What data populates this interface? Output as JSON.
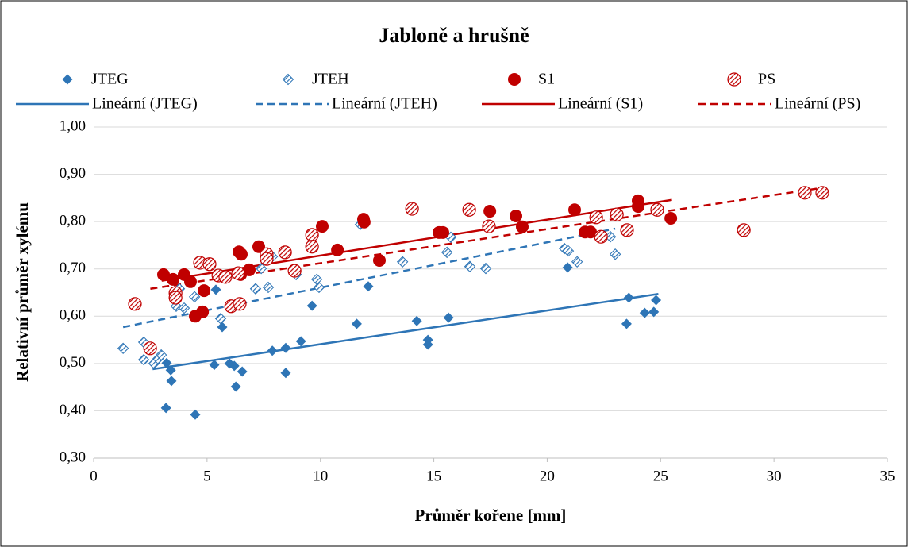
{
  "chart_data": {
    "type": "scatter",
    "title": "Jabloně a hrušně",
    "xlabel": "Průměr kořene [mm]",
    "ylabel": "Relativní průměr xylému",
    "xlim": [
      0,
      35
    ],
    "xticks": [
      0,
      5,
      10,
      15,
      20,
      25,
      30,
      35
    ],
    "ylim": [
      0.3,
      1.0
    ],
    "yticks": [
      {
        "value": 0.3,
        "label": "0,30"
      },
      {
        "value": 0.4,
        "label": "0,40"
      },
      {
        "value": 0.5,
        "label": "0,50"
      },
      {
        "value": 0.6,
        "label": "0,60"
      },
      {
        "value": 0.7,
        "label": "0,70"
      },
      {
        "value": 0.8,
        "label": "0,80"
      },
      {
        "value": 0.9,
        "label": "0,90"
      },
      {
        "value": 1.0,
        "label": "1,00"
      }
    ],
    "grid": true,
    "series": [
      {
        "name": "JTEG",
        "color": "#2e75b6",
        "marker": "diamond",
        "fill": "solid",
        "x": [
          3.19,
          4.48,
          3.22,
          3.4,
          3.43,
          5.32,
          5.39,
          5.67,
          5.99,
          6.2,
          6.27,
          6.55,
          7.88,
          8.47,
          8.47,
          9.14,
          9.63,
          11.6,
          12.11,
          14.25,
          14.74,
          14.74,
          15.65,
          20.9,
          23.6,
          23.5,
          24.3,
          24.7,
          24.8
        ],
        "values": [
          0.406,
          0.392,
          0.501,
          0.486,
          0.463,
          0.497,
          0.656,
          0.577,
          0.5,
          0.495,
          0.451,
          0.483,
          0.527,
          0.48,
          0.533,
          0.547,
          0.622,
          0.584,
          0.663,
          0.59,
          0.55,
          0.54,
          0.597,
          0.703,
          0.639,
          0.584,
          0.607,
          0.609,
          0.634
        ]
      },
      {
        "name": "JTEH",
        "color": "#2e75b6",
        "marker": "diamond",
        "fill": "hatched",
        "x": [
          1.3,
          2.21,
          2.21,
          2.66,
          2.84,
          2.98,
          3.64,
          3.78,
          3.99,
          4.45,
          5.6,
          7.14,
          7.39,
          7.7,
          7.88,
          8.93,
          9.84,
          9.94,
          11.76,
          13.62,
          15.58,
          15.75,
          16.59,
          17.29,
          20.76,
          20.93,
          21.32,
          22.79,
          23.0
        ],
        "values": [
          0.532,
          0.545,
          0.508,
          0.5,
          0.51,
          0.518,
          0.621,
          0.658,
          0.617,
          0.641,
          0.595,
          0.658,
          0.701,
          0.661,
          0.726,
          0.688,
          0.678,
          0.661,
          0.794,
          0.715,
          0.735,
          0.767,
          0.705,
          0.701,
          0.743,
          0.738,
          0.715,
          0.768,
          0.731
        ]
      },
      {
        "name": "S1",
        "color": "#c00000",
        "marker": "circle",
        "fill": "solid",
        "x": [
          3.08,
          3.5,
          3.99,
          4.27,
          4.48,
          4.8,
          4.87,
          6.41,
          6.51,
          6.48,
          6.86,
          7.28,
          10.08,
          10.75,
          11.9,
          11.93,
          12.6,
          15.23,
          15.4,
          17.47,
          18.62,
          18.9,
          21.21,
          21.67,
          21.91,
          24.01,
          24.01,
          25.45
        ],
        "values": [
          0.688,
          0.678,
          0.688,
          0.673,
          0.6,
          0.609,
          0.654,
          0.736,
          0.731,
          0.688,
          0.698,
          0.747,
          0.79,
          0.74,
          0.805,
          0.799,
          0.718,
          0.777,
          0.777,
          0.822,
          0.812,
          0.789,
          0.825,
          0.778,
          0.778,
          0.844,
          0.832,
          0.807
        ]
      },
      {
        "name": "PS",
        "color": "#c00000",
        "marker": "circle",
        "fill": "hatched",
        "x": [
          1.82,
          2.49,
          3.61,
          3.61,
          4.69,
          5.11,
          5.5,
          5.81,
          6.06,
          6.44,
          6.37,
          7.63,
          7.63,
          8.44,
          8.86,
          9.63,
          9.63,
          14.04,
          16.56,
          17.43,
          22.16,
          22.37,
          23.07,
          23.52,
          24.85,
          28.67,
          31.36,
          32.13
        ],
        "values": [
          0.626,
          0.532,
          0.649,
          0.639,
          0.713,
          0.71,
          0.686,
          0.683,
          0.621,
          0.626,
          0.691,
          0.731,
          0.721,
          0.735,
          0.696,
          0.772,
          0.747,
          0.827,
          0.825,
          0.79,
          0.809,
          0.768,
          0.815,
          0.782,
          0.825,
          0.782,
          0.861,
          0.861
        ]
      }
    ],
    "trendlines": [
      {
        "name": "Lineární (JTEG)",
        "color": "#2e75b6",
        "dashed": false,
        "x": [
          2.6,
          24.9
        ],
        "values": [
          0.488,
          0.647
        ]
      },
      {
        "name": "Lineární (JTEH)",
        "color": "#2e75b6",
        "dashed": true,
        "x": [
          1.3,
          23.0
        ],
        "values": [
          0.577,
          0.785
        ]
      },
      {
        "name": "Lineární (S1)",
        "color": "#c00000",
        "dashed": false,
        "x": [
          3.0,
          25.5
        ],
        "values": [
          0.675,
          0.846
        ]
      },
      {
        "name": "Lineární (PS)",
        "color": "#c00000",
        "dashed": true,
        "x": [
          2.5,
          32.2
        ],
        "values": [
          0.658,
          0.872
        ]
      }
    ]
  }
}
